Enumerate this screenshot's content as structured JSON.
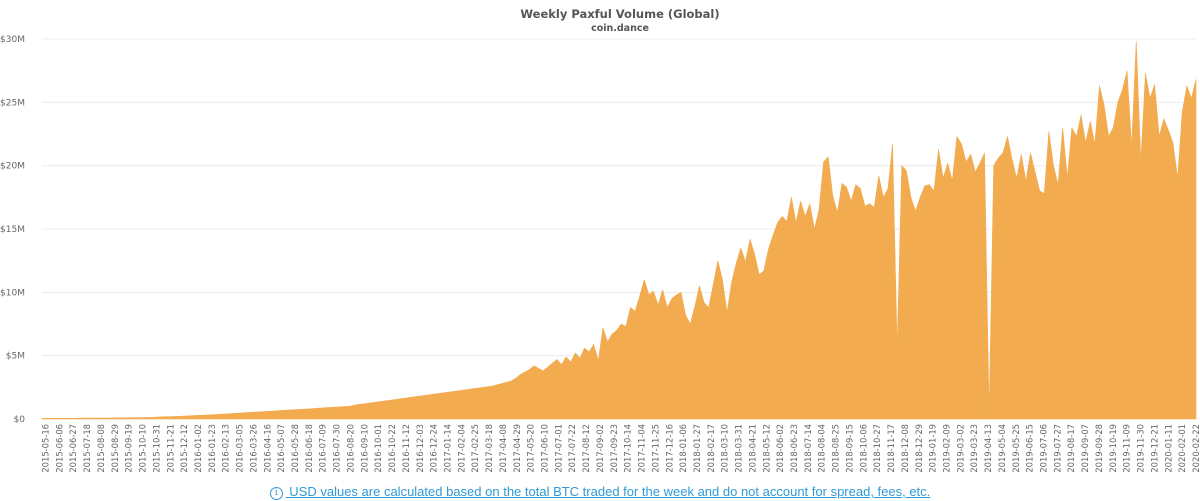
{
  "chart_data": {
    "type": "area",
    "title": "Weekly Paxful Volume (Global)",
    "subtitle": "coin.dance",
    "xlabel": "",
    "ylabel": "",
    "ylim": [
      0,
      30000000
    ],
    "y_ticks": [
      0,
      5000000,
      10000000,
      15000000,
      20000000,
      25000000,
      30000000
    ],
    "y_tick_labels": [
      "$0",
      "$5M",
      "$10M",
      "$15M",
      "$20M",
      "$25M",
      "$30M"
    ],
    "x_tick_labels": [
      "2015-05-16",
      "2015-06-06",
      "2015-06-27",
      "2015-07-18",
      "2015-08-08",
      "2015-08-29",
      "2015-09-19",
      "2015-10-10",
      "2015-10-31",
      "2015-11-21",
      "2015-12-12",
      "2016-01-02",
      "2016-01-23",
      "2016-02-13",
      "2016-03-05",
      "2016-03-26",
      "2016-04-16",
      "2016-05-07",
      "2016-05-28",
      "2016-06-18",
      "2016-07-09",
      "2016-07-30",
      "2016-08-20",
      "2016-09-10",
      "2016-10-01",
      "2016-10-22",
      "2016-11-12",
      "2016-12-03",
      "2016-12-24",
      "2017-01-14",
      "2017-02-04",
      "2017-02-25",
      "2017-03-18",
      "2017-04-08",
      "2017-04-29",
      "2017-05-20",
      "2017-06-10",
      "2017-07-01",
      "2017-07-22",
      "2017-08-12",
      "2017-09-02",
      "2017-09-23",
      "2017-10-14",
      "2017-11-04",
      "2017-11-25",
      "2017-12-16",
      "2018-01-06",
      "2018-01-27",
      "2018-02-17",
      "2018-03-10",
      "2018-03-31",
      "2018-04-21",
      "2018-05-12",
      "2018-06-02",
      "2018-06-23",
      "2018-07-14",
      "2018-08-04",
      "2018-08-25",
      "2018-09-15",
      "2018-10-06",
      "2018-10-27",
      "2018-11-17",
      "2018-12-08",
      "2018-12-29",
      "2019-01-19",
      "2019-02-09",
      "2019-03-02",
      "2019-03-23",
      "2019-04-13",
      "2019-05-04",
      "2019-05-25",
      "2019-06-15",
      "2019-07-06",
      "2019-07-27",
      "2019-08-17",
      "2019-09-07",
      "2019-09-28",
      "2019-10-19",
      "2019-11-09",
      "2019-11-30",
      "2019-12-21",
      "2020-01-11",
      "2020-02-01",
      "2020-02-22"
    ],
    "series": [
      {
        "name": "Weekly Paxful Volume",
        "color": "#f2ab4f",
        "start_date": "2015-05-16",
        "interval": "weekly",
        "values": [
          60000,
          60000,
          60000,
          60000,
          60000,
          60000,
          60000,
          60000,
          70000,
          70000,
          70000,
          70000,
          80000,
          80000,
          80000,
          80000,
          90000,
          90000,
          90000,
          100000,
          100000,
          100000,
          110000,
          120000,
          130000,
          150000,
          170000,
          180000,
          190000,
          200000,
          210000,
          230000,
          250000,
          270000,
          290000,
          300000,
          320000,
          340000,
          360000,
          380000,
          400000,
          420000,
          450000,
          470000,
          500000,
          520000,
          540000,
          560000,
          580000,
          600000,
          620000,
          650000,
          680000,
          700000,
          720000,
          740000,
          760000,
          780000,
          800000,
          830000,
          850000,
          870000,
          900000,
          920000,
          940000,
          960000,
          990000,
          1000000,
          1100000,
          1150000,
          1200000,
          1250000,
          1300000,
          1350000,
          1400000,
          1450000,
          1500000,
          1550000,
          1600000,
          1650000,
          1700000,
          1750000,
          1800000,
          1850000,
          1900000,
          1950000,
          2000000,
          2050000,
          2100000,
          2150000,
          2200000,
          2250000,
          2300000,
          2350000,
          2400000,
          2450000,
          2500000,
          2550000,
          2600000,
          2700000,
          2800000,
          2900000,
          3000000,
          3200000,
          3500000,
          3700000,
          3900000,
          4200000,
          4000000,
          3800000,
          4100000,
          4400000,
          4700000,
          4300000,
          4900000,
          4500000,
          5200000,
          4800000,
          5600000,
          5300000,
          5900000,
          4600000,
          7200000,
          6100000,
          6700000,
          7000000,
          7500000,
          7300000,
          8800000,
          8500000,
          9700000,
          11000000,
          9800000,
          10100000,
          9000000,
          10200000,
          8800000,
          9500000,
          9800000,
          10000000,
          8200000,
          7500000,
          8900000,
          10500000,
          9200000,
          8800000,
          10600000,
          12500000,
          11000000,
          8400000,
          10800000,
          12300000,
          13500000,
          12400000,
          14200000,
          13000000,
          11400000,
          11700000,
          13400000,
          14500000,
          15500000,
          16000000,
          15600000,
          17500000,
          15500000,
          17200000,
          16000000,
          17000000,
          15000000,
          16500000,
          20300000,
          20700000,
          17600000,
          16300000,
          18600000,
          18300000,
          17200000,
          18500000,
          18200000,
          16800000,
          17000000,
          16700000,
          19200000,
          17500000,
          18200000,
          21700000,
          5600000,
          20000000,
          19600000,
          17500000,
          16400000,
          17500000,
          18400000,
          18500000,
          18000000,
          21300000,
          19000000,
          20200000,
          18800000,
          22300000,
          21700000,
          20300000,
          20900000,
          19500000,
          20200000,
          21000000,
          400000,
          20000000,
          20600000,
          21000000,
          22300000,
          20500000,
          19000000,
          20900000,
          18800000,
          21000000,
          19500000,
          18000000,
          17800000,
          22700000,
          20000000,
          18500000,
          23000000,
          19000000,
          23000000,
          22300000,
          24000000,
          21800000,
          23500000,
          21700000,
          26300000,
          24800000,
          22300000,
          23000000,
          25000000,
          26000000,
          27500000,
          21500000,
          29800000,
          20300000,
          27300000,
          25300000,
          26400000,
          22300000,
          23700000,
          22800000,
          21800000,
          19000000,
          24200000,
          26300000,
          25300000,
          26800000
        ]
      }
    ]
  },
  "footnote": {
    "icon": "info-icon",
    "icon_glyph": "i",
    "text": " USD values are calculated based on the total BTC traded for the week and do not account for spread, fees, etc."
  }
}
